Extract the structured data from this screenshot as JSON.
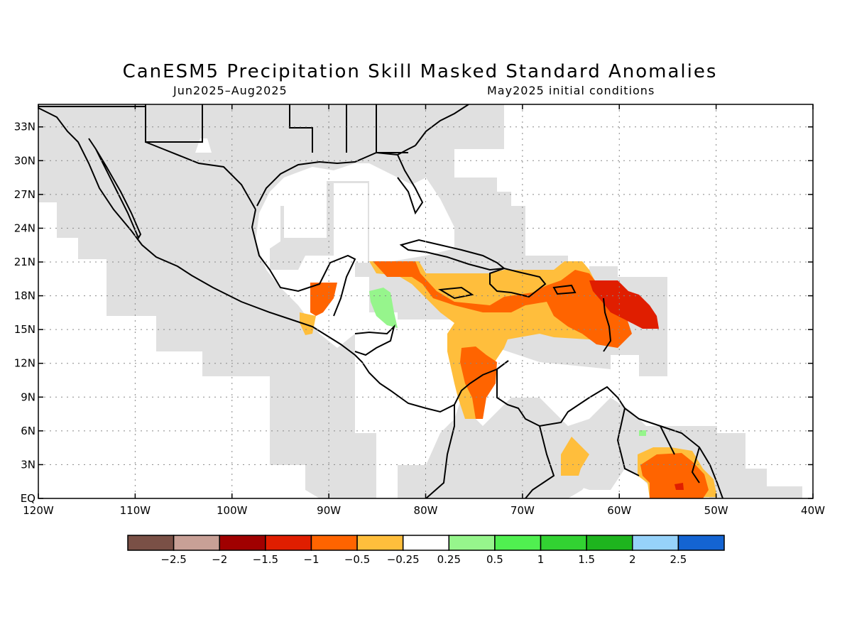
{
  "title": "CanESM5 Precipitation Skill Masked Standard Anomalies",
  "subtitle_left": "Jun2025–Aug2025",
  "subtitle_right": "May2025 initial conditions",
  "map": {
    "lon_range": [
      -120,
      -40
    ],
    "lat_range": [
      0,
      35
    ],
    "lat_ticks": [
      "33N",
      "30N",
      "27N",
      "24N",
      "21N",
      "18N",
      "15N",
      "12N",
      "9N",
      "6N",
      "3N",
      "EQ"
    ],
    "lat_tick_values": [
      33,
      30,
      27,
      24,
      21,
      18,
      15,
      12,
      9,
      6,
      3,
      0
    ],
    "lon_ticks": [
      "120W",
      "110W",
      "100W",
      "90W",
      "80W",
      "70W",
      "60W",
      "50W",
      "40W"
    ],
    "lon_tick_values": [
      -120,
      -110,
      -100,
      -90,
      -80,
      -70,
      -60,
      -50,
      -40
    ],
    "grid": "dotted",
    "masked_color": "#e0e0e0"
  },
  "colorbar": {
    "colors": [
      "#7a5046",
      "#c8a096",
      "#a00000",
      "#e01e00",
      "#ff6400",
      "#ffbe3c",
      "#ffffff",
      "#96f58c",
      "#50f050",
      "#32d232",
      "#1eb41e",
      "#96d2fa",
      "#1464d2"
    ],
    "labels": [
      "−2.5",
      "−2",
      "−1.5",
      "−1",
      "−0.5",
      "−0.25",
      "0.25",
      "0.5",
      "1",
      "1.5",
      "2",
      "2.5"
    ]
  },
  "anomaly_regions": [
    {
      "name": "caribbean-orange",
      "level": -0.25,
      "color": "#ffbe3c"
    },
    {
      "name": "caribbean-dark-orange",
      "level": -0.5,
      "color": "#ff6400"
    },
    {
      "name": "lesser-antilles-red",
      "level": -1,
      "color": "#e01e00"
    },
    {
      "name": "honduras-green",
      "level": 0.25,
      "color": "#96f58c"
    },
    {
      "name": "guiana-orange",
      "level": -0.5,
      "color": "#ff6400"
    }
  ]
}
